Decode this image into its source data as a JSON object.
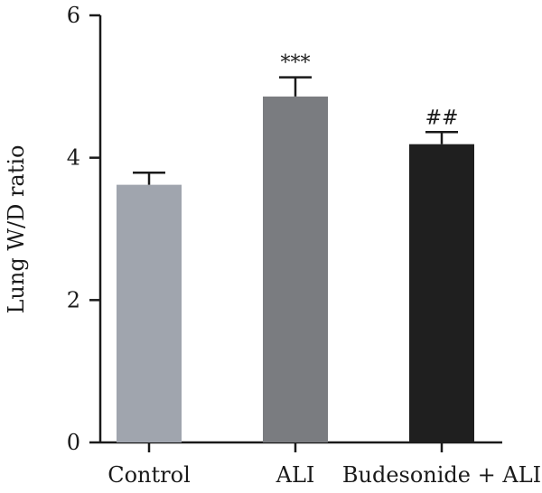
{
  "chart_data": {
    "type": "bar",
    "title": "",
    "xlabel": "",
    "ylabel": "Lung W/D ratio",
    "ylim": [
      0,
      6
    ],
    "yticks": [
      0,
      2,
      4,
      6
    ],
    "categories": [
      "Control",
      "ALI",
      "Budesonide + ALI"
    ],
    "values": [
      3.62,
      4.86,
      4.19
    ],
    "errors": [
      0.17,
      0.27,
      0.17
    ],
    "annotations": [
      "",
      "***",
      "##"
    ],
    "colors": [
      "#a0a5ae",
      "#7a7c80",
      "#1f1f1f"
    ],
    "grid": false,
    "legend": "none"
  }
}
